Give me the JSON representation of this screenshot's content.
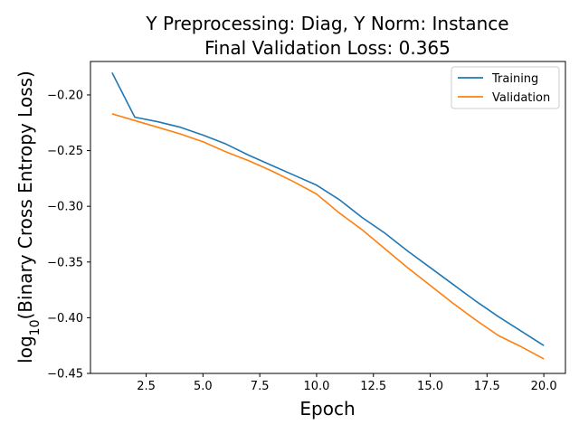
{
  "chart_data": {
    "type": "line",
    "title": "Y Preprocessing: Diag, Y Norm: Instance",
    "subtitle": "Final Validation Loss: 0.365",
    "xlabel": "Epoch",
    "ylabel": {
      "prefix": "log",
      "subscript": "10",
      "suffix": "(Binary Cross Entropy Loss)"
    },
    "xlim": [
      0.05,
      20.95
    ],
    "ylim": [
      -0.45,
      -0.17
    ],
    "xticks": [
      2.5,
      5.0,
      7.5,
      10.0,
      12.5,
      15.0,
      17.5,
      20.0
    ],
    "xtick_labels": [
      "2.5",
      "5.0",
      "7.5",
      "10.0",
      "12.5",
      "15.0",
      "17.5",
      "20.0"
    ],
    "yticks": [
      -0.45,
      -0.4,
      -0.35,
      -0.3,
      -0.25,
      -0.2
    ],
    "ytick_labels": [
      "−0.45",
      "−0.40",
      "−0.35",
      "−0.30",
      "−0.25",
      "−0.20"
    ],
    "grid": false,
    "legend_position": "top-right",
    "x": [
      1,
      2,
      3,
      4,
      5,
      6,
      7,
      8,
      9,
      10,
      11,
      12,
      13,
      14,
      15,
      16,
      17,
      18,
      19,
      20
    ],
    "series": [
      {
        "name": "Training",
        "color": "#1f77b4",
        "values": [
          -0.18,
          -0.22,
          -0.224,
          -0.229,
          -0.236,
          -0.244,
          -0.254,
          -0.263,
          -0.272,
          -0.281,
          -0.294,
          -0.31,
          -0.324,
          -0.34,
          -0.355,
          -0.37,
          -0.385,
          -0.399,
          -0.412,
          -0.425
        ]
      },
      {
        "name": "Validation",
        "color": "#ff7f0e",
        "values": [
          -0.217,
          -0.223,
          -0.229,
          -0.235,
          -0.242,
          -0.251,
          -0.259,
          -0.268,
          -0.278,
          -0.289,
          -0.306,
          -0.321,
          -0.338,
          -0.355,
          -0.371,
          -0.387,
          -0.402,
          -0.416,
          -0.426,
          -0.437
        ]
      }
    ]
  }
}
